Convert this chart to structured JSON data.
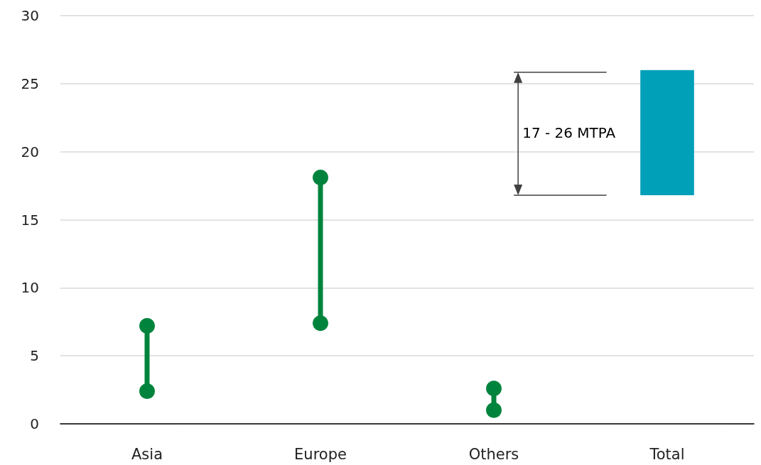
{
  "chart_data": {
    "type": "bar",
    "categories": [
      "Asia",
      "Europe",
      "Others",
      "Total"
    ],
    "series": [
      {
        "type": "line",
        "color": "#00843d",
        "x": [
          "Asia",
          "Asia"
        ],
        "values": [
          2.4,
          7.2
        ]
      },
      {
        "type": "line",
        "color": "#00843d",
        "x": [
          "Europe",
          "Europe"
        ],
        "values": [
          7.4,
          18.1
        ]
      },
      {
        "type": "line",
        "color": "#00843d",
        "x": [
          "Others",
          "Others"
        ],
        "values": [
          1.0,
          2.6
        ]
      },
      {
        "color": "#00a0b8",
        "base": [
          null,
          null,
          null,
          16.8
        ],
        "values": [
          null,
          null,
          null,
          9.2
        ]
      }
    ],
    "marker": "circle",
    "ylim": [
      0,
      30
    ],
    "yticks": [
      0,
      5,
      10,
      15,
      20,
      25,
      30
    ],
    "grid": "y",
    "annotations": [
      "17 - 26 MTPA"
    ]
  }
}
